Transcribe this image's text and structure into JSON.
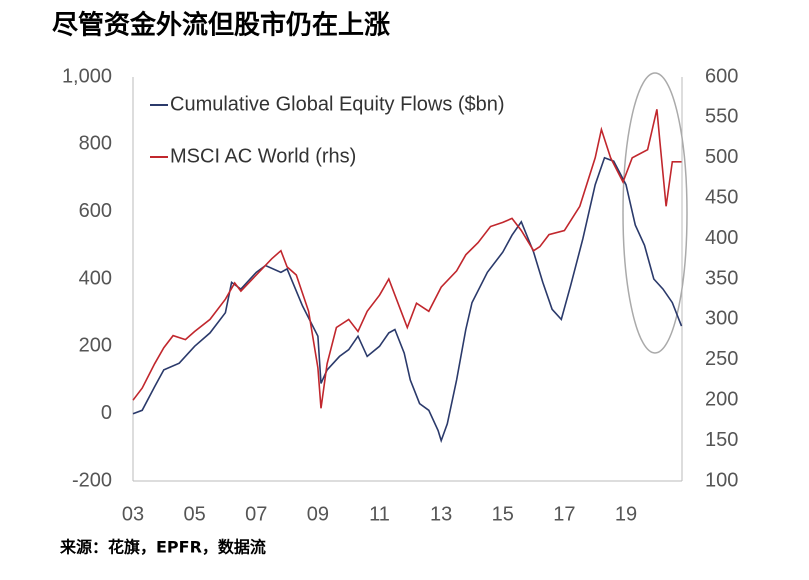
{
  "chart_data": {
    "type": "line",
    "title": "尽管资金外流但股市仍在上涨",
    "source": "来源：花旗，EPFR，数据流",
    "xlim": [
      2003,
      2021.4
    ],
    "xticks": [
      {
        "value": 2003,
        "label": "03"
      },
      {
        "value": 2005,
        "label": "05"
      },
      {
        "value": 2007,
        "label": "07"
      },
      {
        "value": 2009,
        "label": "09"
      },
      {
        "value": 2011,
        "label": "11"
      },
      {
        "value": 2013,
        "label": "13"
      },
      {
        "value": 2015,
        "label": "15"
      },
      {
        "value": 2017,
        "label": "17"
      },
      {
        "value": 2019,
        "label": "19"
      }
    ],
    "ylim": [
      -200,
      1000
    ],
    "yticks": [
      -200,
      0,
      200,
      400,
      600,
      800,
      {
        "value": 1000,
        "label": "1,000"
      }
    ],
    "y2lim": [
      100,
      600
    ],
    "y2ticks": [
      100,
      150,
      200,
      250,
      300,
      350,
      400,
      450,
      500,
      550,
      600
    ],
    "grid": false,
    "legend": "top-left",
    "series": [
      {
        "name": "Cumulative Global Equity Flows ($bn)",
        "color": "#2b3a6b",
        "axis": "y",
        "x": [
          2003.0,
          2003.3,
          2003.7,
          2004.0,
          2004.5,
          2005.0,
          2005.5,
          2006.0,
          2006.2,
          2006.5,
          2007.0,
          2007.3,
          2007.8,
          2008.0,
          2008.5,
          2009.0,
          2009.1,
          2009.3,
          2009.7,
          2010.0,
          2010.3,
          2010.6,
          2011.0,
          2011.3,
          2011.5,
          2011.8,
          2012.0,
          2012.3,
          2012.6,
          2012.9,
          2013.0,
          2013.2,
          2013.5,
          2013.8,
          2014.0,
          2014.5,
          2015.0,
          2015.3,
          2015.6,
          2016.0,
          2016.3,
          2016.6,
          2016.9,
          2017.2,
          2017.6,
          2018.0,
          2018.3,
          2018.6,
          2019.0,
          2019.3,
          2019.6,
          2019.9,
          2020.2,
          2020.5,
          2020.8
        ],
        "values": [
          0,
          10,
          80,
          130,
          150,
          200,
          240,
          300,
          390,
          370,
          420,
          440,
          420,
          430,
          320,
          230,
          90,
          130,
          170,
          190,
          230,
          170,
          200,
          240,
          250,
          180,
          100,
          30,
          10,
          -50,
          -80,
          -30,
          100,
          250,
          330,
          420,
          480,
          530,
          570,
          480,
          390,
          310,
          280,
          380,
          520,
          680,
          760,
          750,
          680,
          560,
          500,
          400,
          370,
          330,
          260
        ]
      },
      {
        "name": "MSCI AC World (rhs)",
        "color": "#c1272d",
        "axis": "y2",
        "x": [
          2003.0,
          2003.3,
          2003.7,
          2004.0,
          2004.3,
          2004.7,
          2005.0,
          2005.5,
          2006.0,
          2006.3,
          2006.5,
          2007.0,
          2007.5,
          2007.8,
          2008.0,
          2008.3,
          2008.7,
          2009.0,
          2009.1,
          2009.3,
          2009.6,
          2010.0,
          2010.3,
          2010.6,
          2011.0,
          2011.3,
          2011.7,
          2011.9,
          2012.2,
          2012.6,
          2013.0,
          2013.5,
          2013.8,
          2014.2,
          2014.6,
          2015.0,
          2015.3,
          2015.6,
          2016.0,
          2016.2,
          2016.5,
          2017.0,
          2017.5,
          2018.0,
          2018.2,
          2018.5,
          2018.9,
          2019.2,
          2019.7,
          2020.0,
          2020.1,
          2020.3,
          2020.5,
          2020.8
        ],
        "values": [
          200,
          215,
          245,
          265,
          280,
          275,
          285,
          300,
          325,
          345,
          335,
          355,
          375,
          385,
          365,
          355,
          310,
          240,
          190,
          245,
          290,
          300,
          285,
          310,
          330,
          350,
          310,
          290,
          320,
          310,
          340,
          360,
          380,
          395,
          415,
          420,
          425,
          410,
          385,
          390,
          405,
          410,
          440,
          500,
          535,
          500,
          470,
          500,
          510,
          560,
          520,
          440,
          495,
          495
        ]
      }
    ]
  }
}
